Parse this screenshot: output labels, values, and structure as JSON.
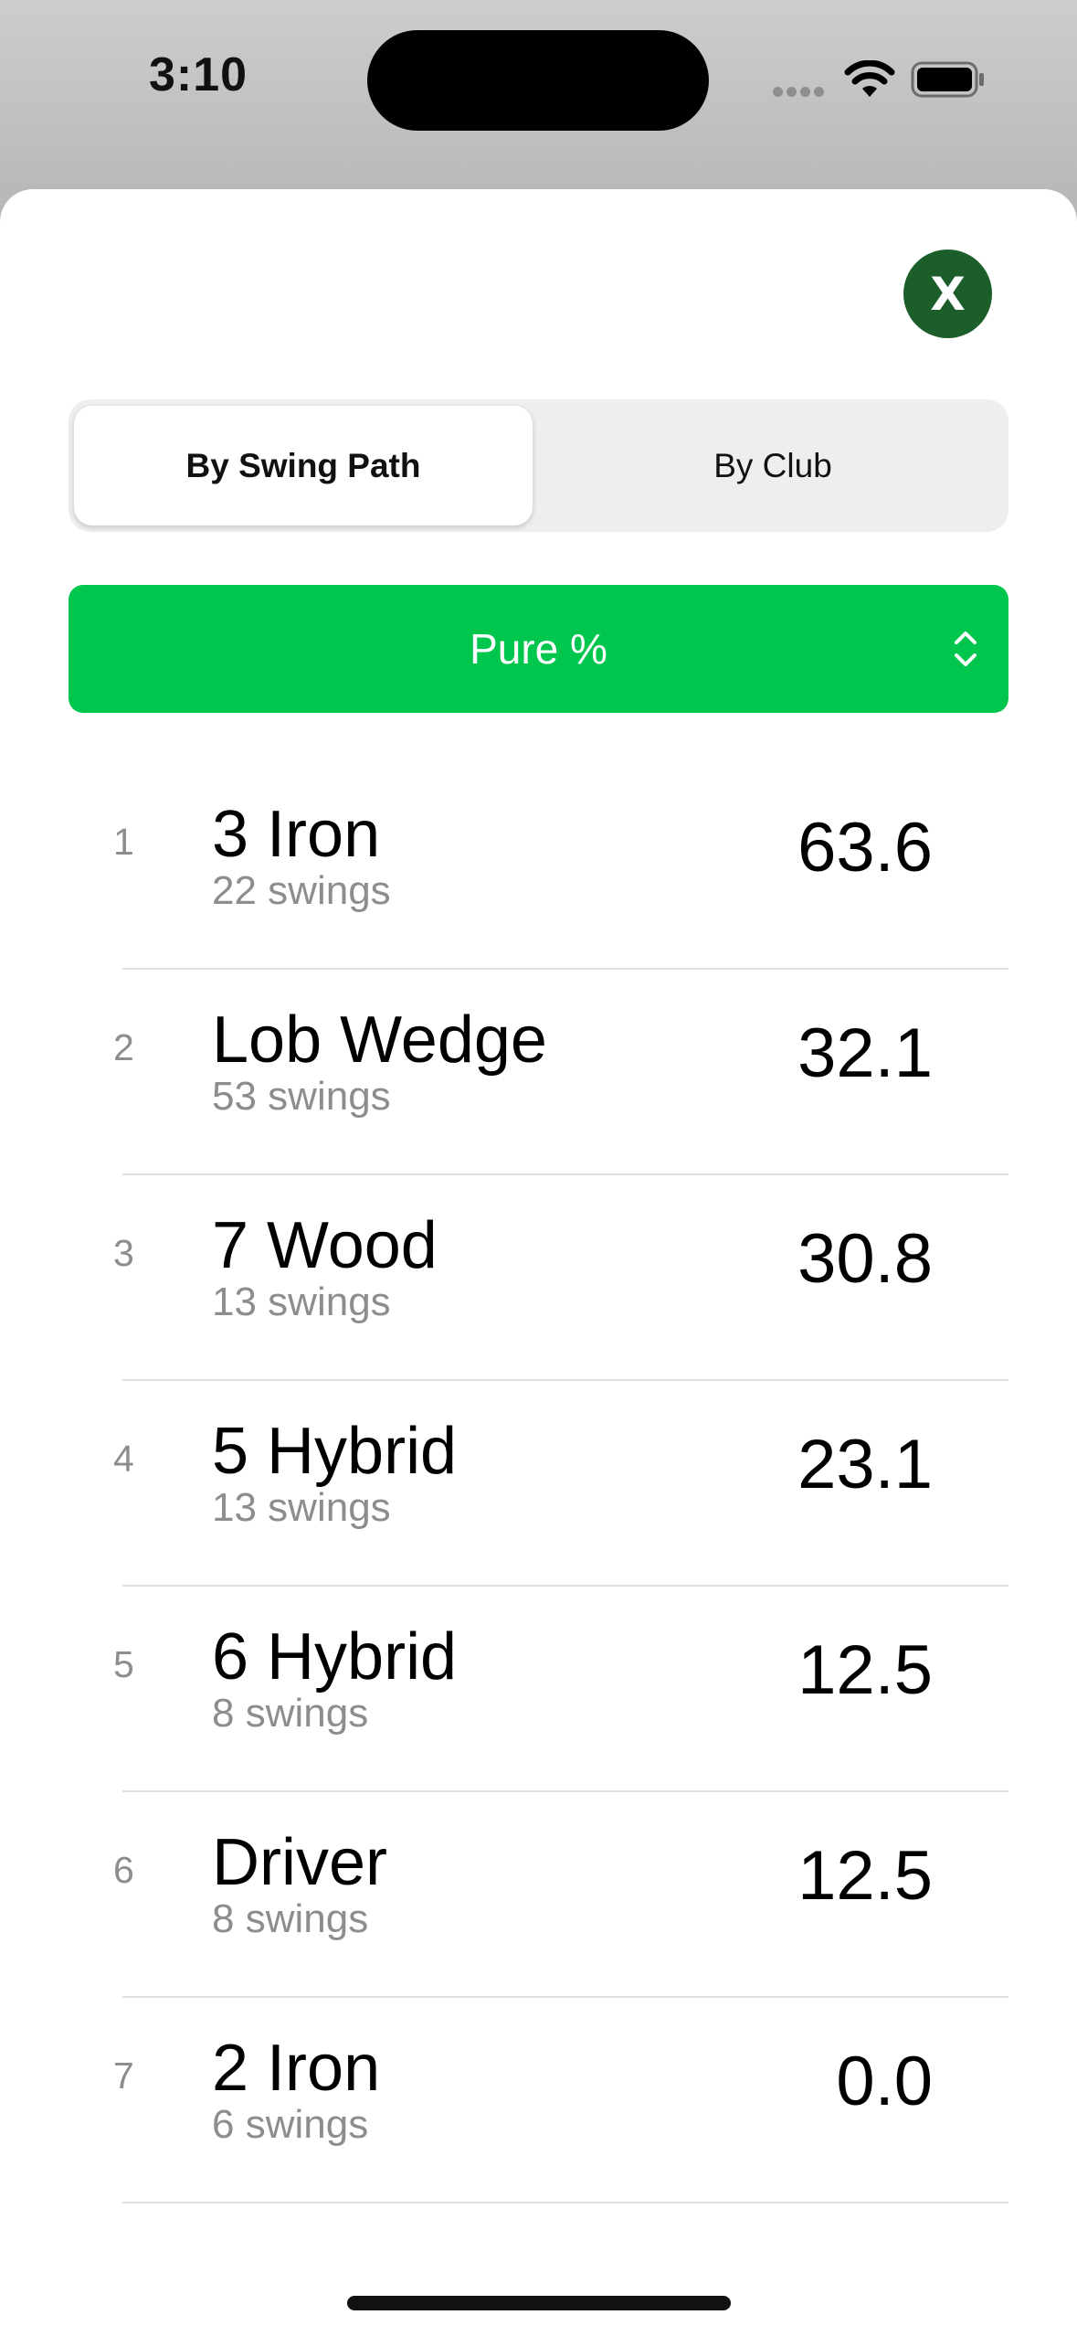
{
  "status_bar": {
    "time": "3:10",
    "icons": [
      "cellular-signal-icon",
      "wifi-icon",
      "battery-icon"
    ]
  },
  "sheet": {
    "close_label": "X",
    "segments": [
      {
        "label": "By Swing Path",
        "selected": true
      },
      {
        "label": "By Club",
        "selected": false
      }
    ],
    "metric": {
      "label": "Pure %",
      "icon": "chevron-up-down-icon"
    },
    "colors": {
      "accent_green": "#00c64e",
      "close_bg": "#1b5e2a"
    },
    "rows": [
      {
        "rank": "1",
        "club": "3 Iron",
        "swings": "22 swings",
        "value": "63.6"
      },
      {
        "rank": "2",
        "club": "Lob Wedge",
        "swings": "53 swings",
        "value": "32.1"
      },
      {
        "rank": "3",
        "club": "7 Wood",
        "swings": "13 swings",
        "value": "30.8"
      },
      {
        "rank": "4",
        "club": "5 Hybrid",
        "swings": "13 swings",
        "value": "23.1"
      },
      {
        "rank": "5",
        "club": "6 Hybrid",
        "swings": "8 swings",
        "value": "12.5"
      },
      {
        "rank": "6",
        "club": "Driver",
        "swings": "8 swings",
        "value": "12.5"
      },
      {
        "rank": "7",
        "club": "2 Iron",
        "swings": "6 swings",
        "value": "0.0"
      }
    ]
  }
}
